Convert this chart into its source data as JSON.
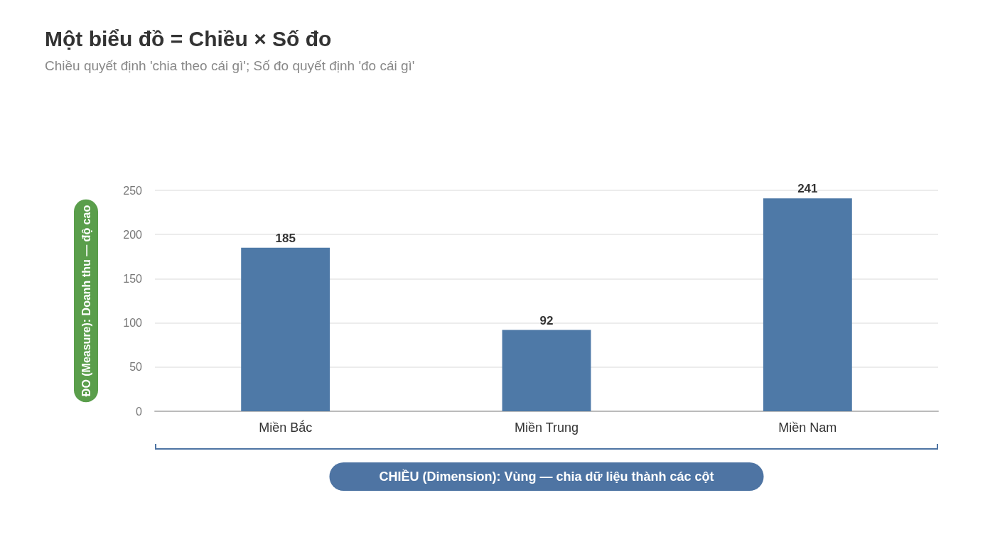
{
  "chart_data": {
    "type": "bar",
    "title": "Một biểu đồ = Chiều × Số đo",
    "subtitle": "Chiều quyết định 'chia theo cái gì'; Số đo quyết định 'đo cái gì'",
    "xlabel": "CHIỀU (Dimension): Vùng — chia dữ liệu thành các cột",
    "ylabel": "ĐO (Measure): Doanh thu — độ cao",
    "categories": [
      "Miền Bắc",
      "Miền Trung",
      "Miền Nam"
    ],
    "values": [
      185,
      92,
      241
    ],
    "color": "#4e79a7",
    "ylim": [
      0,
      250
    ],
    "yticks": [
      0,
      50,
      100,
      150,
      200,
      250
    ],
    "grid": "y",
    "data_labels": true
  }
}
